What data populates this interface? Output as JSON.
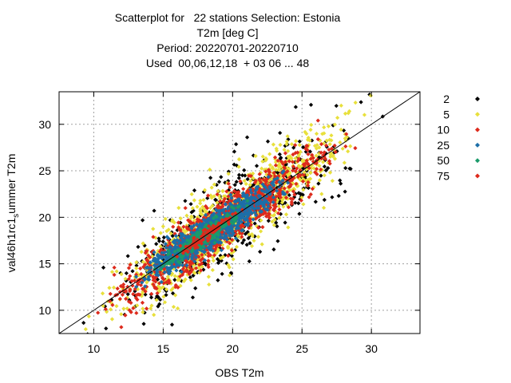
{
  "chart_data": {
    "type": "scatter",
    "title_lines": [
      "Scatterplot for   22 stations Selection: Estonia",
      "T2m [deg C]",
      "Period: 20220701-20220710",
      "Used  00,06,12,18  + 03 06 ... 48"
    ],
    "xlabel": "OBS T2m",
    "ylabel_main": "val46h1rc1",
    "ylabel_sub": "s",
    "ylabel_tail": "ummer T2m",
    "xlim": [
      7.5,
      33.5
    ],
    "ylim": [
      7.5,
      33.5
    ],
    "xticks": [
      10,
      15,
      20,
      25,
      30
    ],
    "yticks": [
      10,
      15,
      20,
      25,
      30
    ],
    "grid": true,
    "diagonal": [
      [
        7.5,
        7.5
      ],
      [
        33.5,
        33.5
      ]
    ],
    "legend_position": "right",
    "series": [
      {
        "name": "2",
        "color": "#000000",
        "spread": 2.6,
        "xmin": 7.6,
        "xmax": 31.8,
        "count": 520,
        "seed": 11
      },
      {
        "name": "5",
        "color": "#e8e03c",
        "spread": 1.9,
        "xmin": 8.5,
        "xmax": 31.2,
        "count": 1100,
        "seed": 23
      },
      {
        "name": "10",
        "color": "#dd2a1c",
        "spread": 1.35,
        "xmin": 9.0,
        "xmax": 29.5,
        "count": 1100,
        "seed": 37
      },
      {
        "name": "25",
        "color": "#1c6ea8",
        "spread": 0.9,
        "xmin": 12.3,
        "xmax": 24.8,
        "count": 1000,
        "seed": 41
      },
      {
        "name": "50",
        "color": "#1a9a6a",
        "spread": 0.55,
        "xmin": 14.0,
        "xmax": 22.0,
        "count": 260,
        "seed": 53
      },
      {
        "name": "75",
        "color": "#dd2a1c",
        "spread": 0.35,
        "xmin": 15.5,
        "xmax": 21.0,
        "count": 90,
        "seed": 67
      }
    ]
  }
}
